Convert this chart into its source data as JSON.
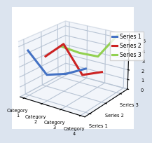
{
  "series": {
    "Series 1": [
      4.5,
      2.6,
      3.2,
      4.2
    ],
    "Series 2": [
      3.1,
      4.8,
      2.2,
      3.0
    ],
    "Series 3": [
      3.3,
      3.1,
      3.2,
      5.8
    ]
  },
  "colors": {
    "Series 1": "#4472C4",
    "Series 2": "#CC2222",
    "Series 3": "#92D050"
  },
  "categories": [
    "Category\n1",
    "Category\n2",
    "Category\n3",
    "Category\n4"
  ],
  "ylim": [
    0,
    5.5
  ],
  "yticks": [
    0,
    1,
    2,
    3,
    4,
    5
  ],
  "z_positions": {
    "Series 1": 0,
    "Series 2": 1,
    "Series 3": 2
  },
  "series_order": [
    "Series 1",
    "Series 2",
    "Series 3"
  ],
  "background_color": "#dce4ef",
  "pane_color": "#e8eef5",
  "grid_color": "#b8c4d4",
  "legend_fontsize": 5.5,
  "tick_fontsize": 4.8,
  "line_width": 2.2,
  "elev": 22,
  "azim": -55
}
